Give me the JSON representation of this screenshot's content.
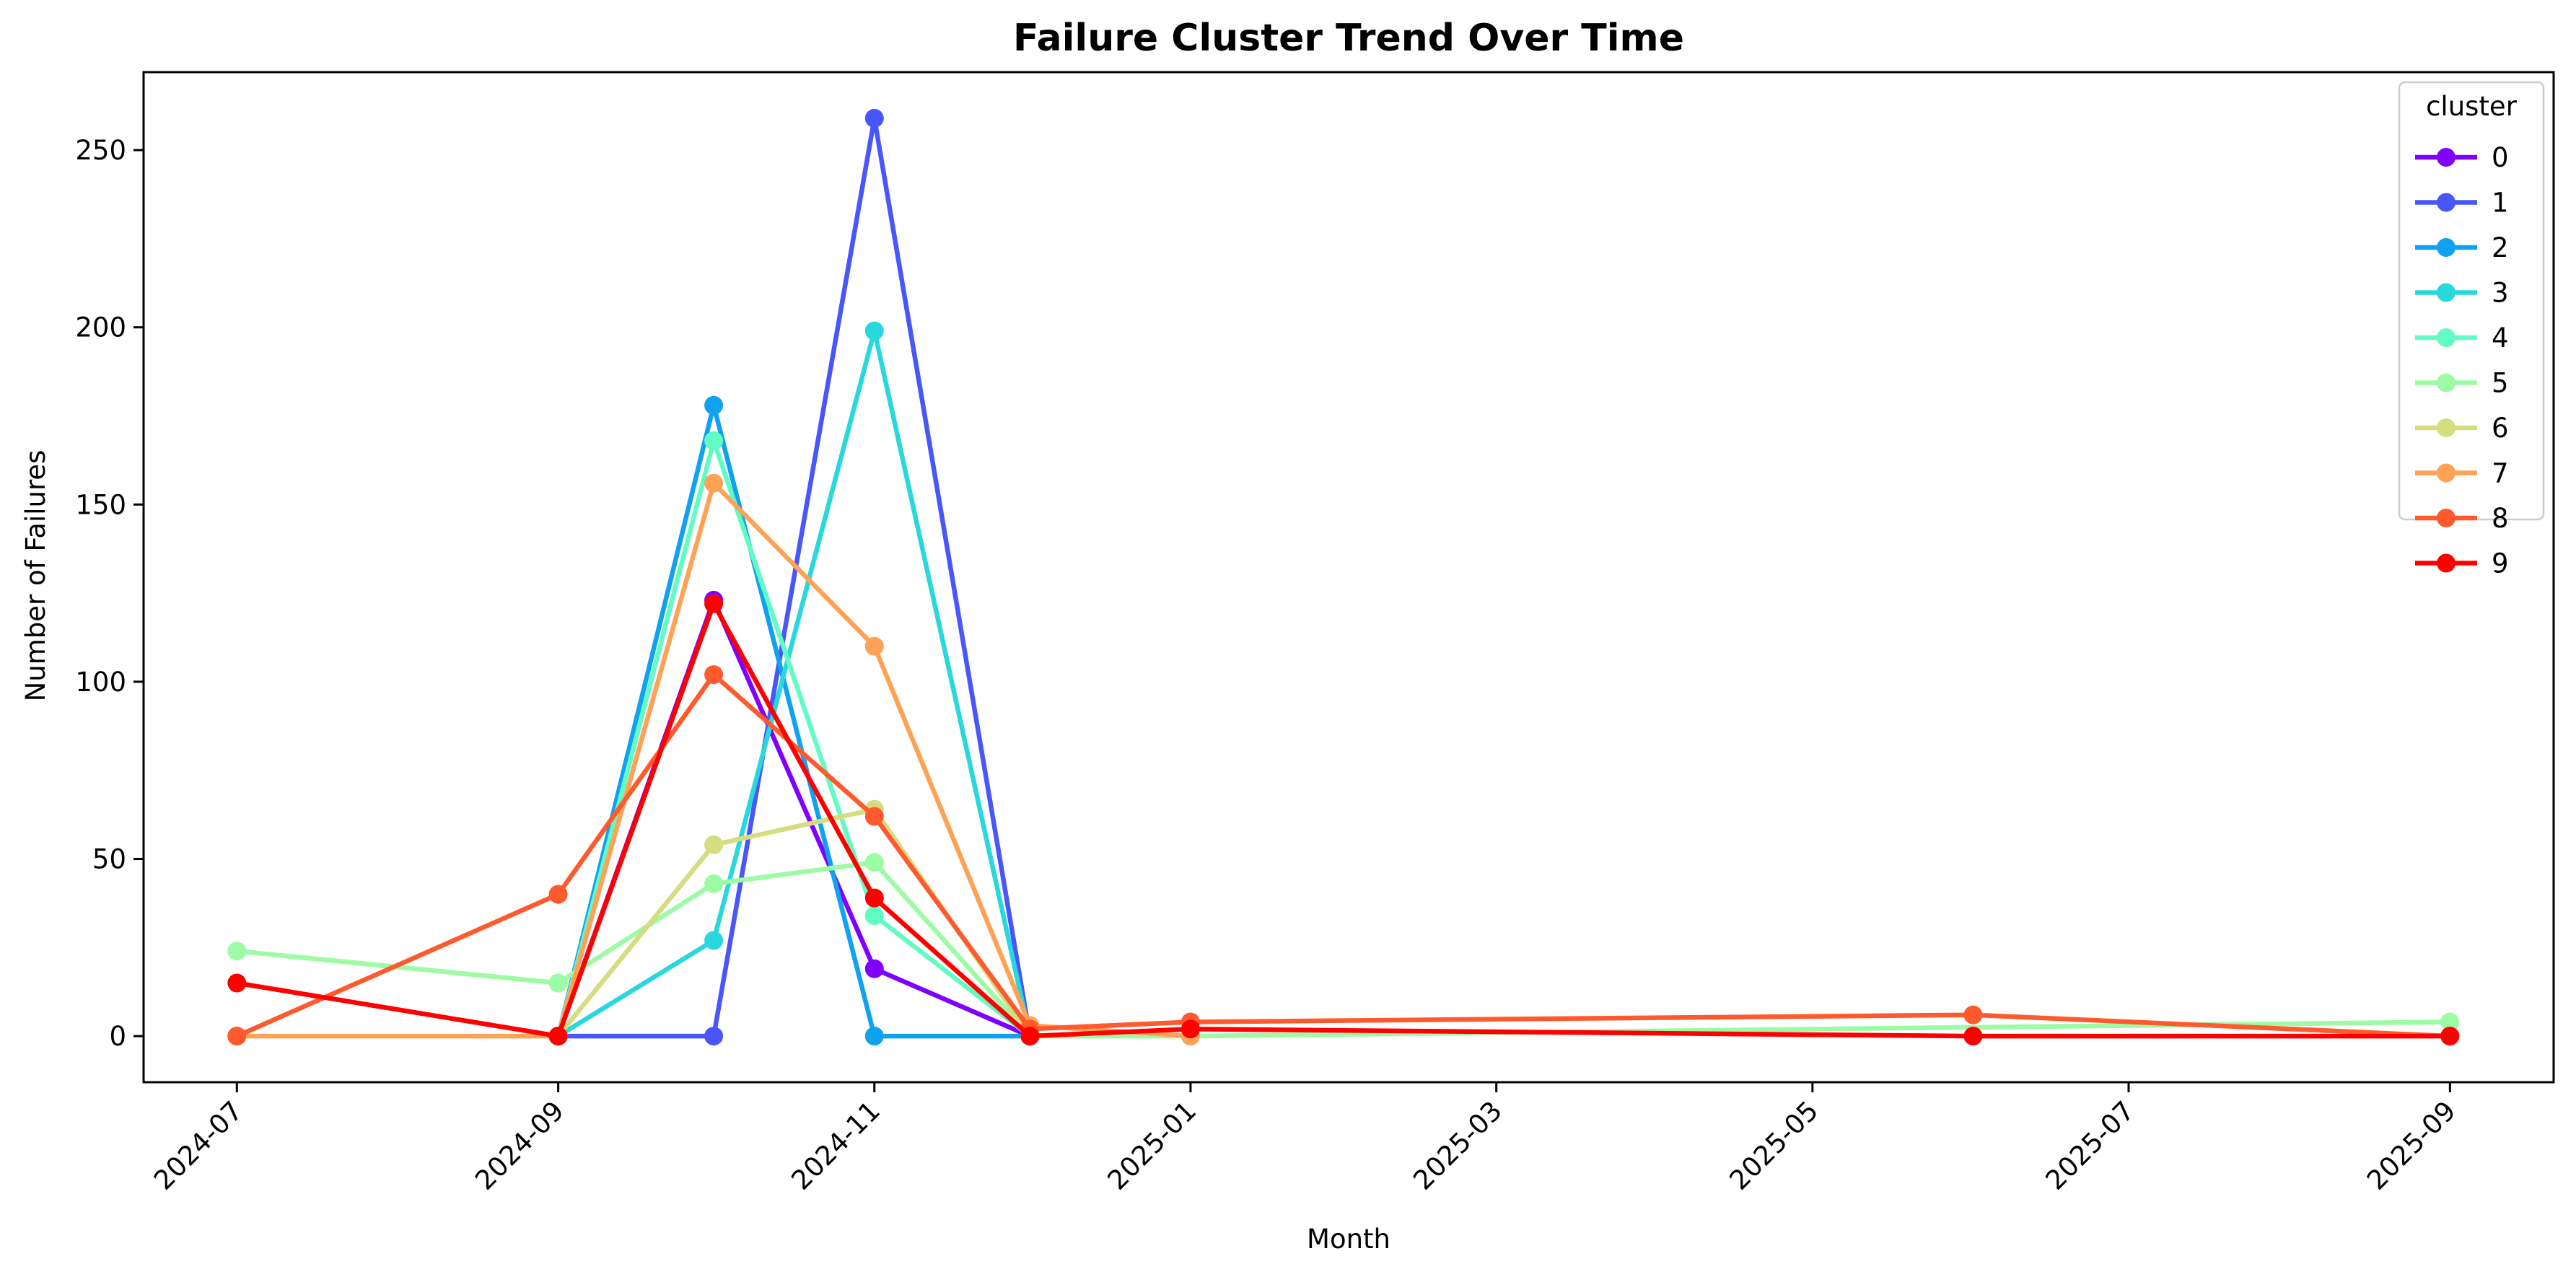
{
  "chart_data": {
    "type": "line",
    "title": "Failure Cluster Trend Over Time",
    "xlabel": "Month",
    "ylabel": "Number of Failures",
    "x_axis_type": "date",
    "xlim": [
      "2024-06-13",
      "2025-09-21"
    ],
    "ylim": [
      -13,
      272
    ],
    "x_ticks": [
      "2024-07",
      "2024-09",
      "2024-11",
      "2025-01",
      "2025-03",
      "2025-05",
      "2025-07",
      "2025-09"
    ],
    "y_ticks": [
      0,
      50,
      100,
      150,
      200,
      250
    ],
    "grid": false,
    "legend": {
      "title": "cluster",
      "position": "top-right"
    },
    "x": [
      "2024-07-01",
      "2024-09-01",
      "2024-10-01",
      "2024-11-01",
      "2024-12-01",
      "2025-01-01",
      "2025-06-01",
      "2025-09-01"
    ],
    "series": [
      {
        "name": "0",
        "color": "#8000ff",
        "points": [
          [
            "2024-09-01",
            0
          ],
          [
            "2024-10-01",
            123
          ],
          [
            "2024-11-01",
            19
          ],
          [
            "2024-12-01",
            0
          ]
        ]
      },
      {
        "name": "1",
        "color": "#4856fb",
        "points": [
          [
            "2024-09-01",
            0
          ],
          [
            "2024-10-01",
            0
          ],
          [
            "2024-11-01",
            259
          ],
          [
            "2024-12-01",
            0
          ]
        ]
      },
      {
        "name": "2",
        "color": "#10a2f0",
        "points": [
          [
            "2024-09-01",
            0
          ],
          [
            "2024-10-01",
            178
          ],
          [
            "2024-11-01",
            0
          ],
          [
            "2024-12-01",
            0
          ]
        ]
      },
      {
        "name": "3",
        "color": "#28d8dd",
        "points": [
          [
            "2024-09-01",
            0
          ],
          [
            "2024-10-01",
            27
          ],
          [
            "2024-11-01",
            199
          ],
          [
            "2024-12-01",
            0
          ]
        ]
      },
      {
        "name": "4",
        "color": "#62fbc4",
        "points": [
          [
            "2024-09-01",
            0
          ],
          [
            "2024-10-01",
            168
          ],
          [
            "2024-11-01",
            34
          ],
          [
            "2024-12-01",
            0
          ]
        ]
      },
      {
        "name": "5",
        "color": "#9cfba4",
        "points": [
          [
            "2024-07-01",
            24
          ],
          [
            "2024-09-01",
            15
          ],
          [
            "2024-10-01",
            43
          ],
          [
            "2024-11-01",
            49
          ],
          [
            "2024-12-01",
            0
          ],
          [
            "2025-01-01",
            0
          ],
          [
            "2025-09-01",
            4
          ]
        ]
      },
      {
        "name": "6",
        "color": "#d4dd80",
        "points": [
          [
            "2024-09-01",
            0
          ],
          [
            "2024-10-01",
            54
          ],
          [
            "2024-11-01",
            64
          ],
          [
            "2024-12-01",
            0
          ]
        ]
      },
      {
        "name": "7",
        "color": "#ffa256",
        "points": [
          [
            "2024-07-01",
            0
          ],
          [
            "2024-09-01",
            0
          ],
          [
            "2024-10-01",
            156
          ],
          [
            "2024-11-01",
            110
          ],
          [
            "2024-12-01",
            3
          ],
          [
            "2025-01-01",
            0
          ]
        ]
      },
      {
        "name": "8",
        "color": "#ff5a2e",
        "points": [
          [
            "2024-07-01",
            0
          ],
          [
            "2024-09-01",
            40
          ],
          [
            "2024-10-01",
            102
          ],
          [
            "2024-11-01",
            62
          ],
          [
            "2024-12-01",
            2
          ],
          [
            "2025-01-01",
            4
          ],
          [
            "2025-06-01",
            6
          ],
          [
            "2025-09-01",
            0
          ]
        ]
      },
      {
        "name": "9",
        "color": "#ff0000",
        "points": [
          [
            "2024-07-01",
            15
          ],
          [
            "2024-09-01",
            0
          ],
          [
            "2024-10-01",
            122
          ],
          [
            "2024-11-01",
            39
          ],
          [
            "2024-12-01",
            0
          ],
          [
            "2025-01-01",
            2
          ],
          [
            "2025-06-01",
            0
          ],
          [
            "2025-09-01",
            0
          ]
        ]
      }
    ]
  }
}
